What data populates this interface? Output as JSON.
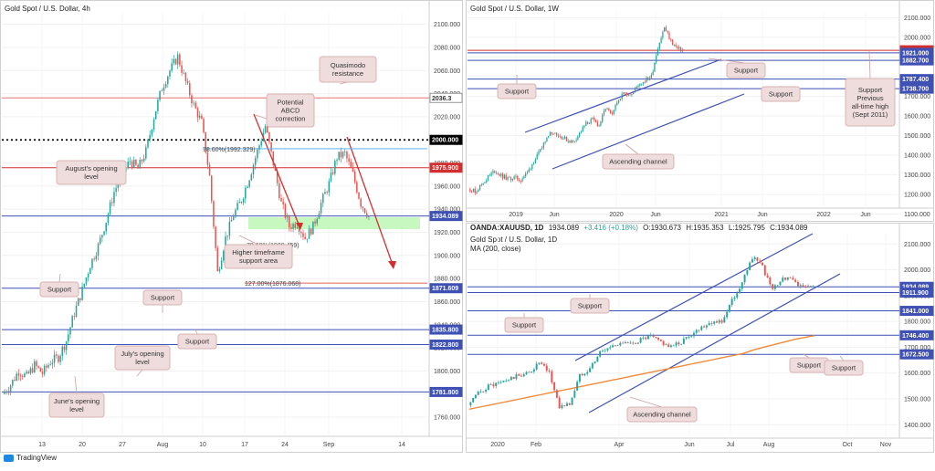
{
  "branding": {
    "name": "TradingView"
  },
  "chart_data": [
    {
      "id": "h4",
      "type": "candlestick",
      "title": "Gold Spot / U.S. Dollar, 4h",
      "x_ticks": [
        "13",
        "20",
        "27",
        "Aug",
        "10",
        "17",
        "24",
        "Sep",
        "14"
      ],
      "y_range": [
        1745,
        2110
      ],
      "y_ticks": [
        2100,
        2080,
        2060,
        2040,
        2020,
        2000,
        1980,
        1960,
        1940,
        1920,
        1900,
        1880,
        1860,
        1840,
        1820,
        1800,
        1780,
        1760
      ],
      "close_path": [
        1780,
        1788,
        1800,
        1795,
        1805,
        1798,
        1808,
        1812,
        1826,
        1850,
        1870,
        1892,
        1908,
        1930,
        1955,
        1970,
        1982,
        1975,
        1990,
        2020,
        2045,
        2060,
        2072,
        2050,
        2030,
        2015,
        1968,
        1885,
        1915,
        1935,
        1948,
        1968,
        1990,
        2012,
        1980,
        1945,
        1925,
        1928,
        1915,
        1925,
        1945,
        1962,
        1985,
        1988,
        1970,
        1945,
        1934
      ],
      "price_lines": [
        {
          "value": 2036.3,
          "label": "2036.3",
          "color": "#e57373",
          "tag_bg": "#ffffff",
          "tag_fg": "#333333"
        },
        {
          "value": 2000.0,
          "label": "2000.000",
          "color": "#000000",
          "dashed": true,
          "tag_bg": "#000000",
          "tag_fg": "#ffffff"
        },
        {
          "value": 1975.9,
          "label": "1975.900",
          "color": "#d32f2f",
          "tag_bg": "#d32f2f",
          "tag_fg": "#ffffff"
        },
        {
          "value": 1934.089,
          "label": "1934.089",
          "color": "#3f51b5",
          "tag_bg": "#3f51b5",
          "tag_fg": "#ffffff"
        },
        {
          "value": 1871.609,
          "label": "1871.609",
          "color": "#3f51b5",
          "tag_bg": "#3f51b5",
          "tag_fg": "#ffffff"
        },
        {
          "value": 1835.8,
          "label": "1835.800",
          "color": "#3f51b5",
          "tag_bg": "#3f51b5",
          "tag_fg": "#ffffff"
        },
        {
          "value": 1822.8,
          "label": "1822.800",
          "color": "#3f51b5",
          "tag_bg": "#3f51b5",
          "tag_fg": "#ffffff"
        },
        {
          "value": 1781.8,
          "label": "1781.800",
          "color": "#3f51b5",
          "tag_bg": "#3f51b5",
          "tag_fg": "#ffffff"
        }
      ],
      "level_annotations": [
        {
          "text": "78.60%(1992.329)",
          "value": 1992.329,
          "color": "#42a5f5"
        },
        {
          "text": "78.60%(1909.459)",
          "value": 1909.459,
          "color": "#66bb6a"
        },
        {
          "text": "127.00%(1876.068)",
          "value": 1876.068,
          "color": "#d32f2f"
        }
      ],
      "callouts": [
        {
          "lines": [
            "Quasimodo",
            "resistance"
          ]
        },
        {
          "lines": [
            "Potential",
            "ABCD",
            "correction"
          ]
        },
        {
          "lines": [
            "August's opening",
            "level"
          ]
        },
        {
          "lines": [
            "Higher timeframe",
            "support area"
          ]
        },
        {
          "lines": [
            "Support"
          ]
        },
        {
          "lines": [
            "Support"
          ]
        },
        {
          "lines": [
            "Support"
          ]
        },
        {
          "lines": [
            "July's opening",
            "level"
          ]
        },
        {
          "lines": [
            "June's opening",
            "level"
          ]
        }
      ]
    },
    {
      "id": "w1",
      "type": "candlestick",
      "title": "Gold Spot / U.S. Dollar, 1W",
      "x_ticks": [
        "2019",
        "Jun",
        "2020",
        "Jun",
        "2021",
        "Jun",
        "2022",
        "Jun"
      ],
      "y_range": [
        1140,
        2125
      ],
      "y_ticks": [
        2100,
        2000,
        1900,
        1800,
        1700,
        1600,
        1500,
        1400,
        1300,
        1200,
        1100
      ],
      "close_path": [
        1230,
        1215,
        1250,
        1290,
        1320,
        1295,
        1280,
        1285,
        1275,
        1310,
        1370,
        1420,
        1500,
        1520,
        1495,
        1480,
        1465,
        1510,
        1560,
        1580,
        1550,
        1640,
        1600,
        1690,
        1720,
        1710,
        1760,
        1780,
        1800,
        1950,
        2050,
        1980,
        1940,
        1934
      ],
      "price_lines": [
        {
          "value": 1934.089,
          "label": "1934.089",
          "color": "#d32f2f",
          "tag_bg": "#d32f2f",
          "tag_fg": "#ffffff"
        },
        {
          "value": 1921.0,
          "label": "1921.000",
          "color": "#3f51b5",
          "tag_bg": "#3f51b5",
          "tag_fg": "#ffffff"
        },
        {
          "value": 1882.7,
          "label": "1882.700",
          "color": "#3f51b5",
          "tag_bg": "#3f51b5",
          "tag_fg": "#ffffff"
        },
        {
          "value": 1787.4,
          "label": "1787.400",
          "color": "#3f51b5",
          "tag_bg": "#3f51b5",
          "tag_fg": "#ffffff"
        },
        {
          "value": 1738.7,
          "label": "1738.700",
          "color": "#3f51b5",
          "tag_bg": "#3f51b5",
          "tag_fg": "#ffffff"
        }
      ],
      "callouts": [
        {
          "lines": [
            "Support"
          ]
        },
        {
          "lines": [
            "Support"
          ]
        },
        {
          "lines": [
            "Support"
          ]
        },
        {
          "lines": [
            "Ascending channel"
          ]
        },
        {
          "lines": [
            "Support",
            "Previous",
            "all-time high",
            "(Sept 2011)"
          ]
        }
      ]
    },
    {
      "id": "d1",
      "type": "candlestick",
      "title": "Gold Spot / U.S. Dollar, 1D",
      "symbol": "OANDA:XAUUSD, 1D",
      "ohlc": {
        "last": "1934.089",
        "change": "+3.416 (+0.18%)",
        "o": "1930.673",
        "h": "1935.353",
        "l": "1925.795",
        "c": "1934.089"
      },
      "indicator": "MA (200, close)",
      "x_ticks": [
        "2020",
        "Feb",
        "Apr",
        "Jun",
        "Jul",
        "Aug",
        "Oct",
        "Nov"
      ],
      "y_range": [
        1355,
        2140
      ],
      "y_ticks": [
        2100,
        2000,
        1900,
        1800,
        1700,
        1600,
        1500,
        1400
      ],
      "close_path": [
        1475,
        1520,
        1550,
        1560,
        1575,
        1590,
        1600,
        1640,
        1600,
        1470,
        1480,
        1590,
        1620,
        1680,
        1700,
        1720,
        1710,
        1730,
        1740,
        1720,
        1700,
        1720,
        1750,
        1780,
        1800,
        1800,
        1880,
        1950,
        2050,
        2010,
        1920,
        1970,
        1960,
        1930,
        1934
      ],
      "ma200": [
        1460,
        1468,
        1476,
        1484,
        1492,
        1500,
        1508,
        1516,
        1524,
        1532,
        1540,
        1548,
        1556,
        1564,
        1572,
        1580,
        1588,
        1596,
        1604,
        1612,
        1620,
        1628,
        1636,
        1644,
        1652,
        1660,
        1668,
        1676,
        1690,
        1700,
        1710,
        1720,
        1730,
        1738,
        1745
      ],
      "price_lines": [
        {
          "value": 1934.089,
          "label": "1934.089",
          "color": "#3f51b5",
          "tag_bg": "#3f51b5",
          "tag_fg": "#ffffff"
        },
        {
          "value": 1911.9,
          "label": "1911.900",
          "color": "#3f51b5",
          "tag_bg": "#3f51b5",
          "tag_fg": "#ffffff"
        },
        {
          "value": 1841.0,
          "label": "1841.000",
          "color": "#3f51b5",
          "tag_bg": "#3f51b5",
          "tag_fg": "#ffffff"
        },
        {
          "value": 1746.4,
          "label": "1746.400",
          "color": "#3f51b5",
          "tag_bg": "#3f51b5",
          "tag_fg": "#ffffff"
        },
        {
          "value": 1672.5,
          "label": "1672.500",
          "color": "#3f51b5",
          "tag_bg": "#3f51b5",
          "tag_fg": "#ffffff"
        }
      ],
      "callouts": [
        {
          "lines": [
            "Support"
          ]
        },
        {
          "lines": [
            "Support"
          ]
        },
        {
          "lines": [
            "Support"
          ]
        },
        {
          "lines": [
            "Support"
          ]
        },
        {
          "lines": [
            "Ascending channel"
          ]
        }
      ]
    }
  ],
  "colors": {
    "up": "#26a69a",
    "down": "#ef5350",
    "frame": "#e0e0e0",
    "callout_bg": "#efdcdc",
    "callout_border": "#d9b3b3",
    "channel": "#3f51b5",
    "ma": "#ef8a3a",
    "zone": "#b9f6b0"
  }
}
